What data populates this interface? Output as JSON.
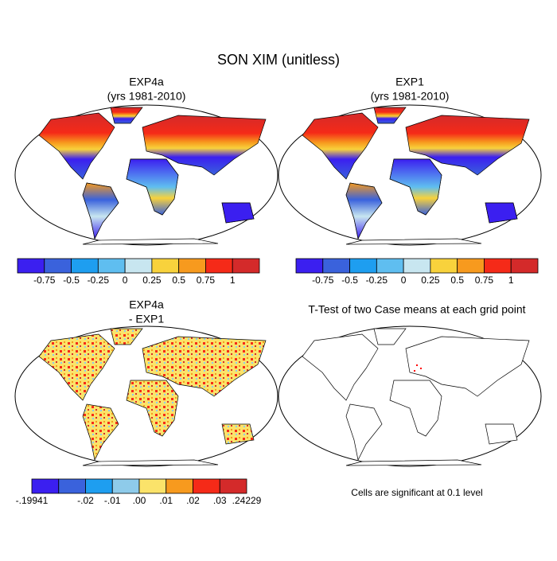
{
  "title": "SON XIM (unitless)",
  "panels": [
    {
      "title": "EXP4a",
      "subtitle": "(yrs 1981-2010)"
    },
    {
      "title": "EXP1",
      "subtitle": "(yrs 1981-2010)"
    },
    {
      "title": "EXP4a",
      "subtitle": "- EXP1"
    },
    {
      "title": "T-Test of two Case means at each grid point"
    }
  ],
  "colorbars": [
    {
      "colors": [
        "#3b1ff0",
        "#3a62dc",
        "#1e9ef0",
        "#5fbef0",
        "#c8e6f0",
        "#f8d23c",
        "#f79a1e",
        "#f52a18",
        "#d42a2a"
      ],
      "labels": [
        null,
        "-0.75",
        "-0.5",
        "-0.25",
        "0",
        "0.25",
        "0.5",
        "0.75",
        "1",
        null
      ]
    },
    {
      "colors": [
        "#3b1ff0",
        "#3a62dc",
        "#1e9ef0",
        "#5fbef0",
        "#c8e6f0",
        "#f8d23c",
        "#f79a1e",
        "#f52a18",
        "#d42a2a"
      ],
      "labels": [
        null,
        "-0.75",
        "-0.5",
        "-0.25",
        "0",
        "0.25",
        "0.5",
        "0.75",
        "1",
        null
      ]
    },
    {
      "colors": [
        "#3b1ff0",
        "#3a62dc",
        "#1e9ef0",
        "#8ecbea",
        "#fbe36a",
        "#f79a1e",
        "#f52a18",
        "#d42a2a"
      ],
      "labels": [
        "-.19941",
        null,
        "-.02",
        "-.01",
        ".00",
        ".01",
        ".02",
        ".03",
        ".24229"
      ]
    }
  ],
  "note": "Cells are significant at 0.1 level"
}
